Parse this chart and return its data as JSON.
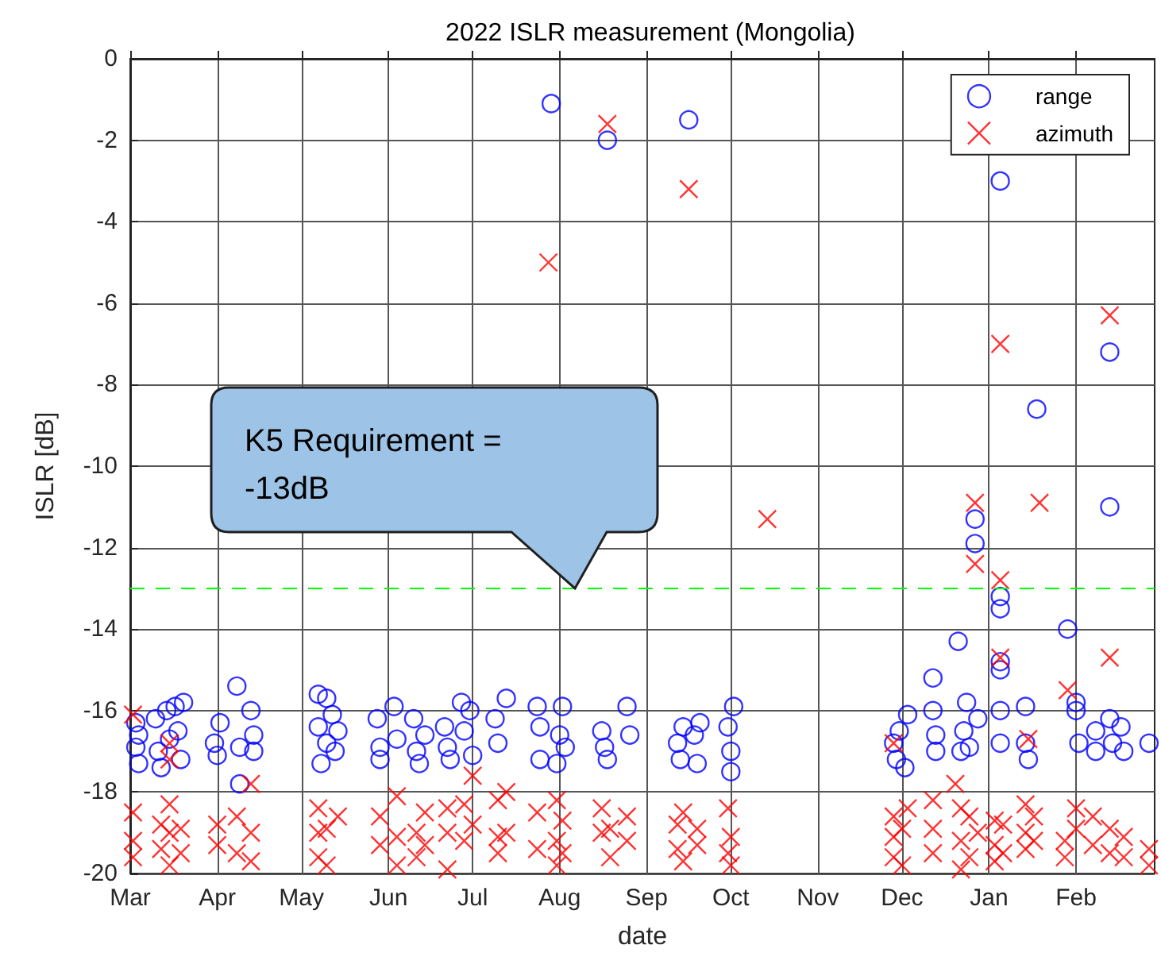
{
  "chart_data": {
    "type": "scatter",
    "title": "2022 ISLR measurement (Mongolia)",
    "xlabel": "date",
    "ylabel": "ISLR [dB]",
    "xlim": [
      "2022-03-01",
      "2023-03-01"
    ],
    "xticks": [
      {
        "value": "2022-03-01",
        "label": "Mar"
      },
      {
        "value": "2022-04-01",
        "label": "Apr"
      },
      {
        "value": "2022-05-01",
        "label": "May"
      },
      {
        "value": "2022-06-01",
        "label": "Jun"
      },
      {
        "value": "2022-07-01",
        "label": "Jul"
      },
      {
        "value": "2022-08-01",
        "label": "Aug"
      },
      {
        "value": "2022-09-01",
        "label": "Sep"
      },
      {
        "value": "2022-10-01",
        "label": "Oct"
      },
      {
        "value": "2022-11-01",
        "label": "Nov"
      },
      {
        "value": "2022-12-01",
        "label": "Dec"
      },
      {
        "value": "2023-01-01",
        "label": "Jan"
      },
      {
        "value": "2023-02-01",
        "label": "Feb"
      }
    ],
    "ylim": [
      -20,
      0
    ],
    "yticks": [
      -20,
      -18,
      -16,
      -14,
      -12,
      -10,
      -8,
      -6,
      -4,
      -2,
      0
    ],
    "grid": true,
    "legend": "top right",
    "ref_lines": [
      {
        "axis": "y",
        "value": -13,
        "label": "K5 Requirement = -13dB",
        "color": "#00ff00",
        "line_style": "dashed"
      }
    ],
    "series": [
      {
        "name": "range",
        "color": "#0000ff",
        "marker": "circle",
        "x": [
          "2022-03-03",
          "2022-03-03",
          "2022-03-04",
          "2022-03-04",
          "2022-03-10",
          "2022-03-11",
          "2022-03-12",
          "2022-03-14",
          "2022-03-15",
          "2022-03-17",
          "2022-03-18",
          "2022-03-19",
          "2022-03-20",
          "2022-03-31",
          "2022-04-01",
          "2022-04-02",
          "2022-04-08",
          "2022-04-09",
          "2022-04-09",
          "2022-04-13",
          "2022-04-14",
          "2022-04-14",
          "2022-05-07",
          "2022-05-07",
          "2022-05-08",
          "2022-05-10",
          "2022-05-10",
          "2022-05-12",
          "2022-05-13",
          "2022-05-14",
          "2022-05-28",
          "2022-05-29",
          "2022-05-29",
          "2022-06-03",
          "2022-06-04",
          "2022-06-10",
          "2022-06-11",
          "2022-06-12",
          "2022-06-14",
          "2022-06-21",
          "2022-06-22",
          "2022-06-23",
          "2022-06-27",
          "2022-06-28",
          "2022-06-30",
          "2022-07-01",
          "2022-07-09",
          "2022-07-10",
          "2022-07-13",
          "2022-07-24",
          "2022-07-25",
          "2022-07-25",
          "2022-07-29",
          "2022-07-31",
          "2022-08-01",
          "2022-08-02",
          "2022-08-03",
          "2022-08-16",
          "2022-08-17",
          "2022-08-18",
          "2022-08-18",
          "2022-08-25",
          "2022-08-26",
          "2022-09-12",
          "2022-09-13",
          "2022-09-14",
          "2022-09-16",
          "2022-09-18",
          "2022-09-19",
          "2022-09-20",
          "2022-09-30",
          "2022-10-01",
          "2022-10-01",
          "2022-10-02",
          "2022-11-28",
          "2022-11-29",
          "2022-11-30",
          "2022-12-02",
          "2022-12-03",
          "2022-12-12",
          "2022-12-12",
          "2022-12-13",
          "2022-12-13",
          "2022-12-21",
          "2022-12-22",
          "2022-12-23",
          "2022-12-24",
          "2022-12-25",
          "2022-12-27",
          "2022-12-27",
          "2022-12-28",
          "2023-01-05",
          "2023-01-05",
          "2023-01-05",
          "2023-01-05",
          "2023-01-05",
          "2023-01-05",
          "2023-01-05",
          "2023-01-14",
          "2023-01-14",
          "2023-01-15",
          "2023-01-18",
          "2023-01-29",
          "2023-02-01",
          "2023-02-01",
          "2023-02-02",
          "2023-02-08",
          "2023-02-08",
          "2023-02-13",
          "2023-02-13",
          "2023-02-13",
          "2023-02-14",
          "2023-02-17",
          "2023-02-18",
          "2023-02-27"
        ],
        "values": [
          -16.3,
          -16.9,
          -17.3,
          -16.6,
          -16.2,
          -17.0,
          -17.4,
          -16.0,
          -16.7,
          -15.9,
          -16.5,
          -17.2,
          -15.8,
          -16.8,
          -17.1,
          -16.3,
          -15.4,
          -16.9,
          -17.8,
          -16.0,
          -16.6,
          -17.0,
          -15.6,
          -16.4,
          -17.3,
          -15.7,
          -16.8,
          -16.1,
          -17.0,
          -16.5,
          -16.2,
          -16.9,
          -17.2,
          -15.9,
          -16.7,
          -16.2,
          -17.0,
          -17.3,
          -16.6,
          -16.4,
          -16.9,
          -17.2,
          -15.8,
          -16.5,
          -16.0,
          -17.1,
          -16.2,
          -16.8,
          -15.7,
          -15.9,
          -16.4,
          -17.2,
          -1.1,
          -17.3,
          -16.6,
          -15.9,
          -16.9,
          -16.5,
          -16.9,
          -17.2,
          -2.0,
          -15.9,
          -16.6,
          -16.8,
          -17.2,
          -16.4,
          -1.5,
          -16.6,
          -17.3,
          -16.3,
          -16.4,
          -17.0,
          -17.5,
          -15.9,
          -16.8,
          -17.2,
          -16.5,
          -17.4,
          -16.1,
          -15.2,
          -16.0,
          -16.6,
          -17.0,
          -14.3,
          -17.0,
          -16.5,
          -15.8,
          -16.9,
          -11.3,
          -11.9,
          -16.2,
          -3.0,
          -13.2,
          -13.5,
          -14.8,
          -15.0,
          -16.0,
          -16.8,
          -15.9,
          -16.8,
          -17.2,
          -8.6,
          -14.0,
          -15.8,
          -16.0,
          -16.8,
          -16.5,
          -17.0,
          -11.0,
          -7.2,
          -16.2,
          -16.8,
          -16.4,
          -17.0,
          -16.8
        ]
      },
      {
        "name": "azimuth",
        "color": "#ff0000",
        "marker": "cross",
        "x": [
          "2022-03-02",
          "2022-03-02",
          "2022-03-02",
          "2022-03-02",
          "2022-03-12",
          "2022-03-12",
          "2022-03-15",
          "2022-03-15",
          "2022-03-15",
          "2022-03-15",
          "2022-03-15",
          "2022-03-19",
          "2022-03-19",
          "2022-04-01",
          "2022-04-01",
          "2022-04-08",
          "2022-04-08",
          "2022-04-13",
          "2022-04-13",
          "2022-04-13",
          "2022-05-07",
          "2022-05-07",
          "2022-05-07",
          "2022-05-10",
          "2022-05-10",
          "2022-05-14",
          "2022-05-29",
          "2022-05-29",
          "2022-06-04",
          "2022-06-04",
          "2022-06-04",
          "2022-06-11",
          "2022-06-11",
          "2022-06-14",
          "2022-06-14",
          "2022-06-22",
          "2022-06-22",
          "2022-06-22",
          "2022-06-28",
          "2022-06-28",
          "2022-07-01",
          "2022-07-01",
          "2022-07-10",
          "2022-07-10",
          "2022-07-10",
          "2022-07-13",
          "2022-07-13",
          "2022-07-24",
          "2022-07-24",
          "2022-07-28",
          "2022-07-31",
          "2022-07-31",
          "2022-07-31",
          "2022-08-02",
          "2022-08-02",
          "2022-08-16",
          "2022-08-16",
          "2022-08-18",
          "2022-08-19",
          "2022-08-19",
          "2022-08-25",
          "2022-08-25",
          "2022-09-12",
          "2022-09-12",
          "2022-09-14",
          "2022-09-14",
          "2022-09-16",
          "2022-09-19",
          "2022-09-19",
          "2022-09-30",
          "2022-09-30",
          "2022-10-01",
          "2022-10-01",
          "2022-10-14",
          "2022-11-28",
          "2022-11-28",
          "2022-11-28",
          "2022-11-28",
          "2022-12-01",
          "2022-12-01",
          "2022-12-03",
          "2022-12-12",
          "2022-12-12",
          "2022-12-12",
          "2022-12-20",
          "2022-12-22",
          "2022-12-22",
          "2022-12-22",
          "2022-12-25",
          "2022-12-25",
          "2022-12-27",
          "2022-12-27",
          "2022-12-28",
          "2023-01-03",
          "2023-01-03",
          "2023-01-03",
          "2023-01-05",
          "2023-01-05",
          "2023-01-05",
          "2023-01-06",
          "2023-01-06",
          "2023-01-14",
          "2023-01-14",
          "2023-01-14",
          "2023-01-15",
          "2023-01-17",
          "2023-01-17",
          "2023-01-19",
          "2023-01-28",
          "2023-01-28",
          "2023-01-29",
          "2023-02-01",
          "2023-02-01",
          "2023-02-07",
          "2023-02-07",
          "2023-02-13",
          "2023-02-13",
          "2023-02-13",
          "2023-02-13",
          "2023-02-18",
          "2023-02-18",
          "2023-02-27",
          "2023-02-27"
        ],
        "values": [
          -16.1,
          -18.5,
          -19.2,
          -19.6,
          -18.8,
          -19.4,
          -16.8,
          -17.2,
          -18.3,
          -19.0,
          -19.8,
          -18.9,
          -19.5,
          -18.8,
          -19.3,
          -18.6,
          -19.5,
          -17.8,
          -19.0,
          -19.7,
          -18.4,
          -19.0,
          -19.6,
          -18.9,
          -19.8,
          -18.6,
          -18.6,
          -19.3,
          -18.1,
          -19.1,
          -19.8,
          -19.0,
          -19.6,
          -18.5,
          -19.3,
          -18.4,
          -19.0,
          -19.9,
          -18.3,
          -19.2,
          -17.6,
          -18.8,
          -18.2,
          -19.1,
          -19.5,
          -18.0,
          -19.0,
          -18.5,
          -19.4,
          -5.0,
          -18.2,
          -19.2,
          -19.8,
          -18.7,
          -19.5,
          -18.4,
          -19.0,
          -1.6,
          -18.9,
          -19.6,
          -18.6,
          -19.2,
          -18.8,
          -19.4,
          -18.5,
          -19.7,
          -3.2,
          -18.9,
          -19.3,
          -18.4,
          -19.5,
          -19.1,
          -19.8,
          -11.3,
          -16.8,
          -18.6,
          -19.1,
          -19.6,
          -18.9,
          -19.8,
          -18.4,
          -18.2,
          -18.9,
          -19.5,
          -17.8,
          -18.4,
          -19.2,
          -19.9,
          -18.6,
          -19.6,
          -10.9,
          -12.4,
          -19.0,
          -18.7,
          -19.3,
          -19.7,
          -7.0,
          -12.8,
          -14.7,
          -18.8,
          -19.5,
          -18.3,
          -19.0,
          -19.4,
          -16.7,
          -18.6,
          -19.2,
          -10.9,
          -19.2,
          -19.6,
          -15.5,
          -18.4,
          -18.9,
          -18.6,
          -19.3,
          -6.3,
          -14.7,
          -18.9,
          -19.5,
          -19.1,
          -19.6,
          -19.4,
          -19.8
        ]
      }
    ]
  }
}
